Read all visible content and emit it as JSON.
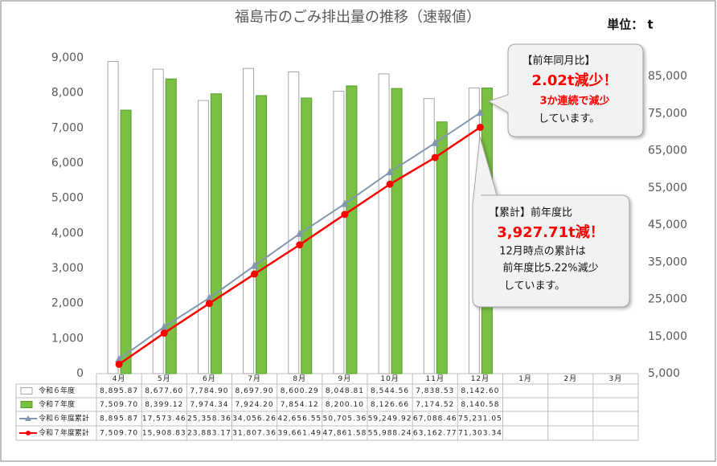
{
  "chart_data": {
    "type": "bar",
    "title": "福島市のごみ排出量の推移（速報値）",
    "unit": "単位： t",
    "categories": [
      "4月",
      "5月",
      "6月",
      "7月",
      "8月",
      "9月",
      "10月",
      "11月",
      "12月",
      "1月",
      "2月",
      "3月"
    ],
    "series": [
      {
        "name": "令和６年度",
        "type": "bar",
        "color": "#ffffff",
        "stroke": "#a6a6a6",
        "values": [
          8895.87,
          8677.6,
          7784.9,
          8697.9,
          8600.29,
          8048.81,
          8544.56,
          7838.53,
          8142.6,
          null,
          null,
          null
        ],
        "value_labels": [
          "8,895.87",
          "8,677.60",
          "7,784.90",
          "8,697.90",
          "8,600.29",
          "8,048.81",
          "8,544.56",
          "7,838.53",
          "8,142.60",
          null,
          null,
          null
        ]
      },
      {
        "name": "令和７年度",
        "type": "bar",
        "color": "#7ac143",
        "stroke": "#5a9a2a",
        "values": [
          7509.7,
          8399.12,
          7974.34,
          7924.2,
          7854.12,
          8200.1,
          8126.66,
          7174.52,
          8140.58,
          null,
          null,
          null
        ],
        "value_labels": [
          "7,509.70",
          "8,399.12",
          "7,974.34",
          "7,924.20",
          "7,854.12",
          "8,200.10",
          "8,126.66",
          "7,174.52",
          "8,140.58",
          null,
          null,
          null
        ]
      },
      {
        "name": "令和６年度累計",
        "type": "line",
        "axis": "y2",
        "color": "#8497b0",
        "marker": "triangle",
        "values": [
          8895.87,
          17573.46,
          25358.36,
          34056.26,
          42656.55,
          50705.36,
          59249.92,
          67088.46,
          75231.05,
          null,
          null,
          null
        ],
        "value_labels": [
          "8,895.87",
          "17,573.46",
          "25,358.36",
          "34,056.26",
          "42,656.55",
          "50,705.36",
          "59,249.92",
          "67,088.46",
          "75,231.05",
          null,
          null,
          null
        ]
      },
      {
        "name": "令和７年度累計",
        "type": "line",
        "axis": "y2",
        "color": "#ff0000",
        "marker": "circle",
        "values": [
          7509.7,
          15908.83,
          23883.17,
          31807.36,
          39661.49,
          47861.58,
          55988.24,
          63162.77,
          71303.34,
          null,
          null,
          null
        ],
        "value_labels": [
          "7,509.70",
          "15,908.83",
          "23,883.17",
          "31,807.36",
          "39,661.49",
          "47,861.58",
          "55,988.24",
          "63,162.77",
          "71,303.34",
          null,
          null,
          null
        ]
      }
    ],
    "ylim": [
      0,
      9000
    ],
    "yticks": [
      0,
      {
        "value": 1000,
        "label": "1,000"
      },
      {
        "value": 2000,
        "label": "2,000"
      },
      {
        "value": 3000,
        "label": "3,000"
      },
      {
        "value": 4000,
        "label": "4,000"
      },
      {
        "value": 5000,
        "label": "5,000"
      },
      {
        "value": 6000,
        "label": "6,000"
      },
      {
        "value": 7000,
        "label": "7,000"
      },
      {
        "value": 8000,
        "label": "8,000"
      },
      {
        "value": 9000,
        "label": "9,000"
      }
    ],
    "y2lim": [
      5000,
      90000
    ],
    "y2ticks": [
      {
        "value": 5000,
        "label": "5,000"
      },
      {
        "value": 15000,
        "label": "15,000"
      },
      {
        "value": 25000,
        "label": "25,000"
      },
      {
        "value": 35000,
        "label": "35,000"
      },
      {
        "value": 45000,
        "label": "45,000"
      },
      {
        "value": 55000,
        "label": "55,000"
      },
      {
        "value": 65000,
        "label": "65,000"
      },
      {
        "value": 75000,
        "label": "75,000"
      },
      {
        "value": 85000,
        "label": "85,000"
      }
    ],
    "annotations": [
      [
        "【前年同月比】",
        "2.02t減少！",
        "3か連続で減少",
        "しています。"
      ],
      [
        "【累計】前年度比",
        "3,927.71t減！",
        "12月時点の累計は",
        "前年度比5.22%減少",
        "しています。"
      ]
    ]
  }
}
